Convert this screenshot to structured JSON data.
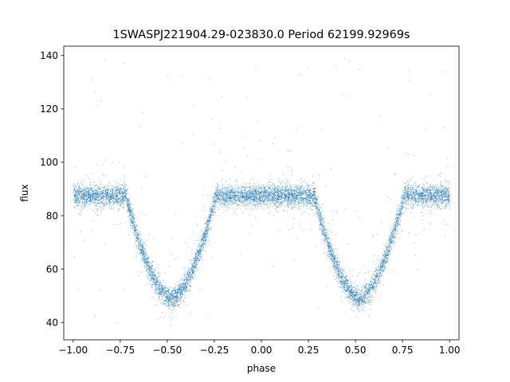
{
  "chart_data": {
    "type": "scatter",
    "title": "1SWASPJ221904.29-023830.0 Period 62199.92969s",
    "xlabel": "phase",
    "ylabel": "flux",
    "xlim": [
      -1.05,
      1.05
    ],
    "ylim": [
      33.5,
      143.5
    ],
    "xticks": [
      -1.0,
      -0.75,
      -0.5,
      -0.25,
      0.0,
      0.25,
      0.5,
      0.75,
      1.0
    ],
    "xtick_labels": [
      "−1.00",
      "−0.75",
      "−0.50",
      "−0.25",
      "0.00",
      "0.25",
      "0.50",
      "0.75",
      "1.00"
    ],
    "yticks": [
      40,
      60,
      80,
      100,
      120,
      140
    ],
    "ytick_labels": [
      "40",
      "60",
      "80",
      "100",
      "120",
      "140"
    ],
    "grid": false,
    "legend": "none",
    "marker_color": "#1f77b4",
    "series": [
      {
        "phase_range": [
          -1.0,
          1.0
        ],
        "baseline_flux": 87.5,
        "baseline_scatter": 2.5,
        "eclipses": [
          {
            "phase_center": -0.48,
            "min_flux": 49,
            "half_width": 0.24
          },
          {
            "phase_center": 0.52,
            "min_flux": 49,
            "half_width": 0.24
          }
        ],
        "outlier_range": [
          38,
          140
        ]
      }
    ]
  }
}
